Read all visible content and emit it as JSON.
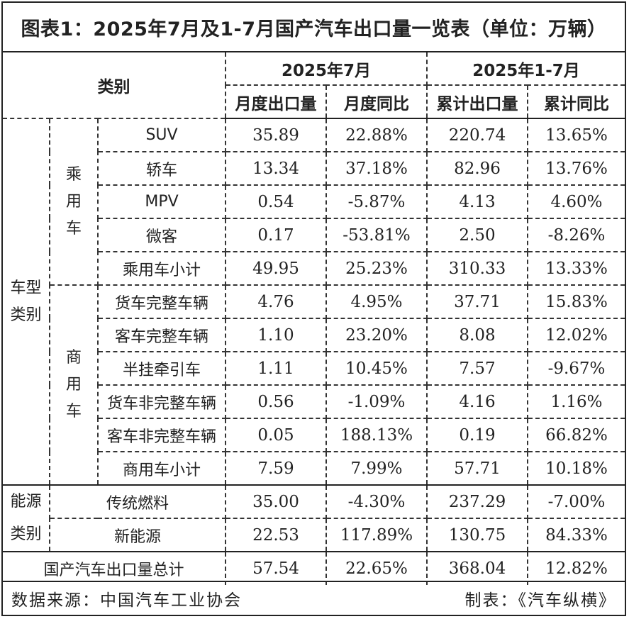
{
  "title": "图表1：2025年7月及1-7月国产汽车出口量一览表（单位：万辆）",
  "header": {
    "category": "类别",
    "period1": "2025年7月",
    "period2": "2025年1-7月",
    "col_monthly_export": "月度出口量",
    "col_monthly_yoy": "月度同比",
    "col_cum_export": "累计出口量",
    "col_cum_yoy": "累计同比"
  },
  "groups": {
    "vehicle_type": "车型\n类别",
    "passenger": "乘\n用\n车",
    "commercial": "商\n用\n车",
    "energy_type": "能源\n类别"
  },
  "rows": [
    {
      "label": "SUV",
      "monthly_export": "35.89",
      "monthly_yoy": "22.88%",
      "cum_export": "220.74",
      "cum_yoy": "13.65%"
    },
    {
      "label": "轿车",
      "monthly_export": "13.34",
      "monthly_yoy": "37.18%",
      "cum_export": "82.96",
      "cum_yoy": "13.76%"
    },
    {
      "label": "MPV",
      "monthly_export": "0.54",
      "monthly_yoy": "-5.87%",
      "cum_export": "4.13",
      "cum_yoy": "4.60%"
    },
    {
      "label": "微客",
      "monthly_export": "0.17",
      "monthly_yoy": "-53.81%",
      "cum_export": "2.50",
      "cum_yoy": "-8.26%"
    },
    {
      "label": "乘用车小计",
      "monthly_export": "49.95",
      "monthly_yoy": "25.23%",
      "cum_export": "310.33",
      "cum_yoy": "13.33%"
    },
    {
      "label": "货车完整车辆",
      "monthly_export": "4.76",
      "monthly_yoy": "4.95%",
      "cum_export": "37.71",
      "cum_yoy": "15.83%"
    },
    {
      "label": "客车完整车辆",
      "monthly_export": "1.10",
      "monthly_yoy": "23.20%",
      "cum_export": "8.08",
      "cum_yoy": "12.02%"
    },
    {
      "label": "半挂牵引车",
      "monthly_export": "1.11",
      "monthly_yoy": "10.45%",
      "cum_export": "7.57",
      "cum_yoy": "-9.67%"
    },
    {
      "label": "货车非完整车辆",
      "monthly_export": "0.56",
      "monthly_yoy": "-1.09%",
      "cum_export": "4.16",
      "cum_yoy": "1.16%"
    },
    {
      "label": "客车非完整车辆",
      "monthly_export": "0.05",
      "monthly_yoy": "188.13%",
      "cum_export": "0.19",
      "cum_yoy": "66.82%"
    },
    {
      "label": "商用车小计",
      "monthly_export": "7.59",
      "monthly_yoy": "7.99%",
      "cum_export": "57.71",
      "cum_yoy": "10.18%"
    },
    {
      "label": "传统燃料",
      "monthly_export": "35.00",
      "monthly_yoy": "-4.30%",
      "cum_export": "237.29",
      "cum_yoy": "-7.00%"
    },
    {
      "label": "新能源",
      "monthly_export": "22.53",
      "monthly_yoy": "117.89%",
      "cum_export": "130.75",
      "cum_yoy": "84.33%"
    },
    {
      "label": "国产汽车出口量总计",
      "monthly_export": "57.54",
      "monthly_yoy": "22.65%",
      "cum_export": "368.04",
      "cum_yoy": "12.82%"
    }
  ],
  "footer": {
    "source": "数据来源：中国汽车工业协会",
    "maker": "制表：《汽车纵横》"
  }
}
